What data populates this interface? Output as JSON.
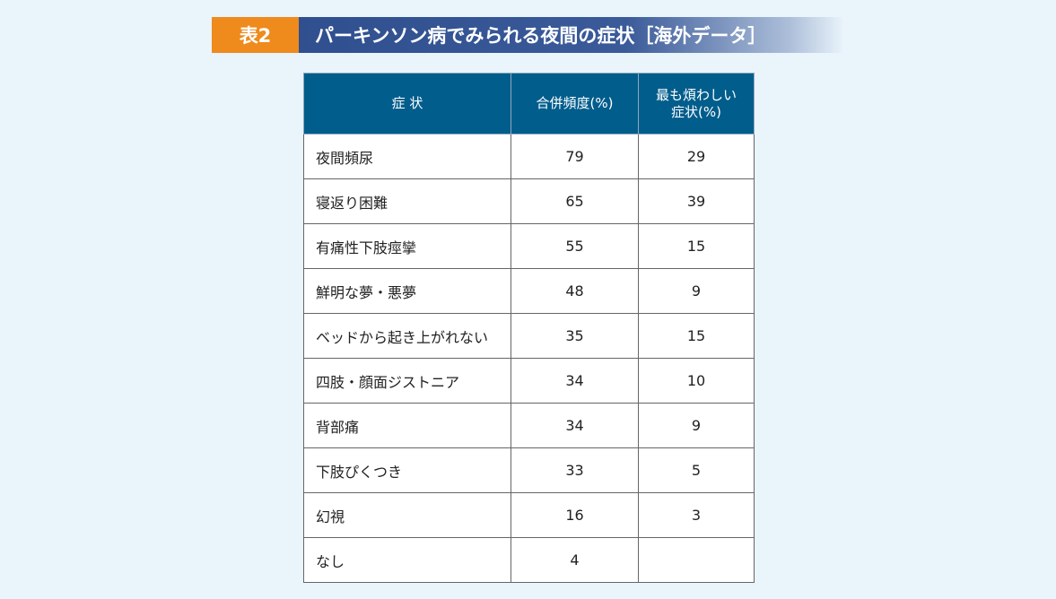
{
  "title": {
    "badge": "表2",
    "text": "パーキンソン病でみられる夜間の症状［海外データ］"
  },
  "table": {
    "headers": {
      "symptom": "症 状",
      "frequency": "合併頻度(%)",
      "most_bothersome_line1": "最も煩わしい",
      "most_bothersome_line2": "症状(%)"
    },
    "rows": [
      {
        "symptom": "夜間頻尿",
        "frequency": "79",
        "bothersome": "29"
      },
      {
        "symptom": "寝返り困難",
        "frequency": "65",
        "bothersome": "39"
      },
      {
        "symptom": "有痛性下肢痙攣",
        "frequency": "55",
        "bothersome": "15"
      },
      {
        "symptom": "鮮明な夢・悪夢",
        "frequency": "48",
        "bothersome": "9"
      },
      {
        "symptom": "ベッドから起き上がれない",
        "frequency": "35",
        "bothersome": "15"
      },
      {
        "symptom": "四肢・顔面ジストニア",
        "frequency": "34",
        "bothersome": "10"
      },
      {
        "symptom": "背部痛",
        "frequency": "34",
        "bothersome": "9"
      },
      {
        "symptom": "下肢ぴくつき",
        "frequency": "33",
        "bothersome": "5"
      },
      {
        "symptom": "幻視",
        "frequency": "16",
        "bothersome": "3"
      },
      {
        "symptom": "なし",
        "frequency": "4",
        "bothersome": ""
      }
    ]
  }
}
